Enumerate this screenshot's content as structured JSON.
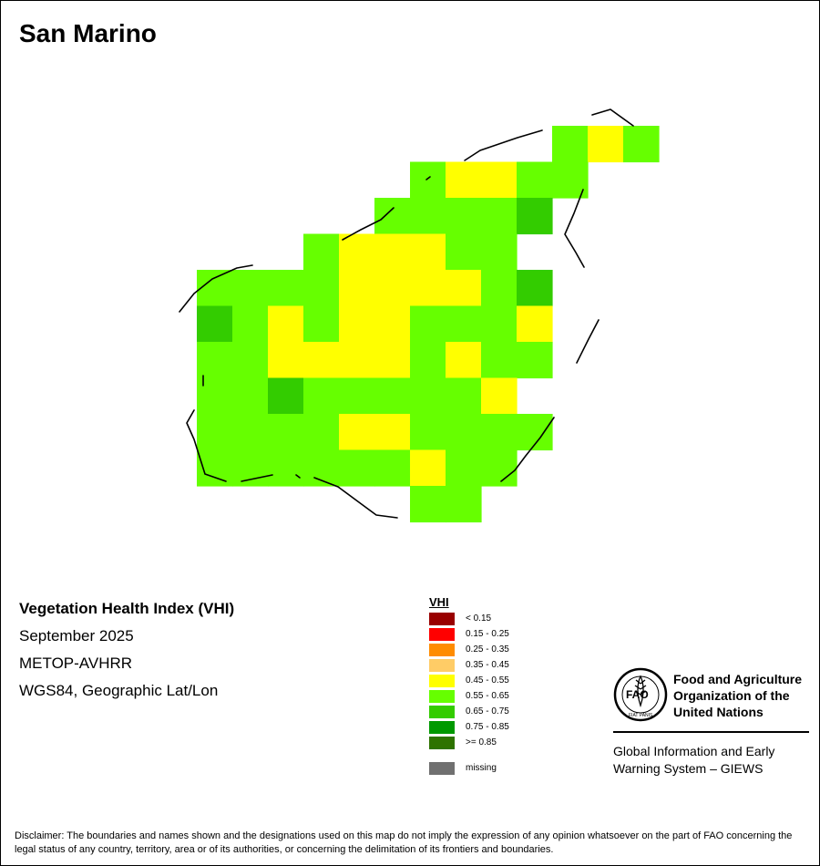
{
  "title": "San Marino",
  "info": {
    "index_name": "Vegetation Health Index (VHI)",
    "date": "September 2025",
    "sensor": "METOP-AVHRR",
    "projection": "WGS84, Geographic Lat/Lon"
  },
  "legend": {
    "title": "VHI",
    "classes": [
      {
        "label": "< 0.15",
        "color": "#990000"
      },
      {
        "label": "0.15 - 0.25",
        "color": "#ff0000"
      },
      {
        "label": "0.25 - 0.35",
        "color": "#ff8c00"
      },
      {
        "label": "0.35 - 0.45",
        "color": "#ffcc66"
      },
      {
        "label": "0.45 - 0.55",
        "color": "#ffff00"
      },
      {
        "label": "0.55 - 0.65",
        "color": "#66ff00"
      },
      {
        "label": "0.65 - 0.75",
        "color": "#33cc00"
      },
      {
        "label": "0.75 - 0.85",
        "color": "#009900"
      },
      {
        "label": ">= 0.85",
        "color": "#2e7300"
      }
    ],
    "missing": {
      "label": "missing",
      "color": "#707070"
    }
  },
  "vhi_grid": {
    "cell_codes": {
      "Y": "0.45 - 0.55",
      "G": "0.55 - 0.65",
      "D": "0.65 - 0.75"
    },
    "rows": [
      "..........GYG",
      "......GYYGG..",
      ".....GGGGD...",
      "...GYYYGG....",
      "GGGGYYYYGD...",
      "DGYGYYGGGY...",
      "GGYYYYGYGG...",
      "GGDGGGGGY....",
      "GGGGYYGGGG...",
      "GGGGGGYGG....",
      "......GG....."
    ]
  },
  "fao": {
    "logo_letters": "FAO",
    "logo_motto": "FIAT PANIS",
    "name_lines": [
      "Food and Agriculture",
      "Organization of the",
      "United Nations"
    ],
    "giews_lines": [
      "Global Information and Early",
      "Warning System – GIEWS"
    ]
  },
  "disclaimer": "Disclaimer: The boundaries and names shown and the designations used on this map do not imply the expression of any opinion whatsoever on the part of FAO concerning the legal status of any country, territory, area or of its authorities, or concerning the delimitation of its frontiers and boundaries."
}
